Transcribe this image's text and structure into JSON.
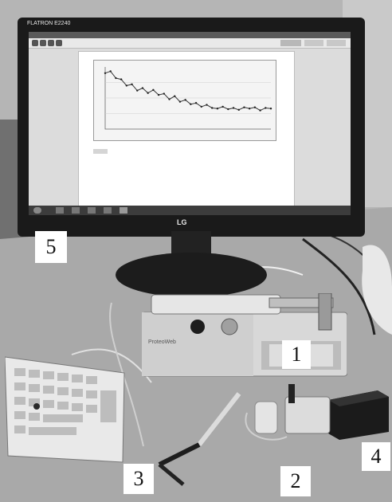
{
  "labels": {
    "syringe_pump": "1",
    "sample_cell": "2",
    "needle_probe": "3",
    "detector_box": "4",
    "computer_monitor": "5"
  },
  "monitor": {
    "brand": "FLATRON",
    "model_text": "E2240",
    "logo": "LG"
  },
  "pump": {
    "brand": "ProteoWeb"
  },
  "screen": {
    "toolbar_buttons": [
      "button",
      "button",
      "button"
    ],
    "chart_data": {
      "type": "line",
      "title": "",
      "xlabel": "",
      "ylabel": "",
      "series": [
        {
          "values": [
            0.9,
            0.93,
            0.82,
            0.8,
            0.7,
            0.72,
            0.62,
            0.66,
            0.58,
            0.63,
            0.55,
            0.57,
            0.48,
            0.53,
            0.44,
            0.47,
            0.4,
            0.42,
            0.36,
            0.39,
            0.34,
            0.33,
            0.36,
            0.32,
            0.34,
            0.31,
            0.35,
            0.33,
            0.35,
            0.3,
            0.34,
            0.33
          ]
        }
      ]
    }
  },
  "icons": {
    "keyboard": "keyboard-icon",
    "monitor": "monitor-icon"
  }
}
